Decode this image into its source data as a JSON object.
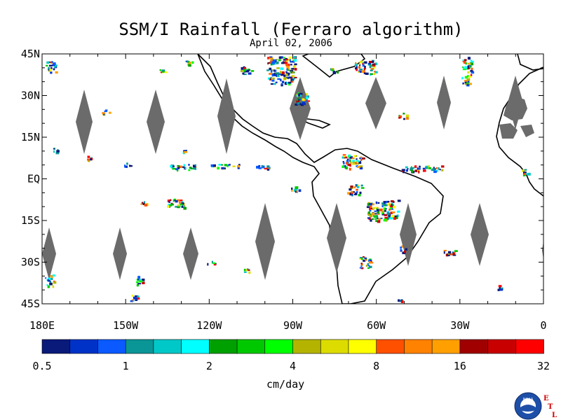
{
  "title": "SSM/I Rainfall (Ferraro algorithm)",
  "subtitle": "April 02, 2006",
  "map": {
    "lat_labels": [
      "45N",
      "30N",
      "15N",
      "EQ",
      "15S",
      "30S",
      "45S"
    ],
    "lat_values": [
      45,
      30,
      15,
      0,
      -15,
      -30,
      -45
    ],
    "lon_labels": [
      "180E",
      "150W",
      "120W",
      "90W",
      "60W",
      "30W",
      "0"
    ],
    "lon_values": [
      -180,
      -150,
      -120,
      -90,
      -60,
      -30,
      0
    ],
    "lon_range": [
      -180,
      0
    ],
    "lat_range": [
      -45,
      45
    ],
    "land_color": "#6b6b6b",
    "coast_color": "#000000"
  },
  "colorbar": {
    "colors": [
      "#0a1a7a",
      "#0032c8",
      "#0a5aff",
      "#0a9696",
      "#00c8c8",
      "#00ffff",
      "#00a000",
      "#00c800",
      "#00ff00",
      "#b4b400",
      "#dcdc00",
      "#ffff00",
      "#ff5000",
      "#ff8200",
      "#ffa000",
      "#a00000",
      "#c80000",
      "#ff0000"
    ],
    "tick_labels": [
      "0.5",
      "1",
      "2",
      "4",
      "8",
      "16",
      "32"
    ],
    "units": "cm/day"
  },
  "logo": {
    "emblem_text": "NOAA",
    "side_letters": [
      "E",
      "T",
      "L"
    ]
  }
}
